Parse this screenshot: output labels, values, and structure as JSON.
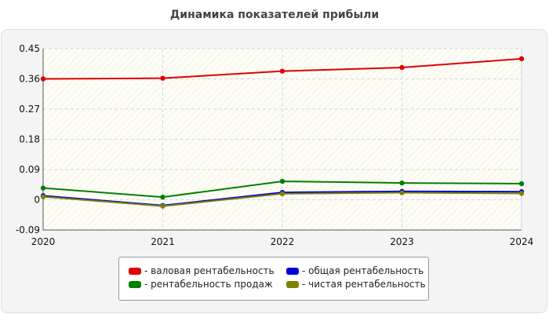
{
  "chart_data": {
    "type": "line",
    "title": "Динамика показателей прибыли",
    "xlabel": "",
    "ylabel": "",
    "categories": [
      "2020",
      "2021",
      "2022",
      "2023",
      "2024"
    ],
    "ylim": [
      -0.09,
      0.45
    ],
    "yticks": [
      -0.09,
      0,
      0.09,
      0.18,
      0.27,
      0.36,
      0.45
    ],
    "ytick_labels": [
      "-0.09",
      "0",
      "0.09",
      "0.18",
      "0.27",
      "0.36",
      "0.45"
    ],
    "grid": true,
    "legend_position": "bottom",
    "series": [
      {
        "name": "- валовая рентабельность",
        "color": "#e00000",
        "values": [
          0.36,
          0.362,
          0.383,
          0.394,
          0.42
        ]
      },
      {
        "name": "- общая рентабельность",
        "color": "#0000e0",
        "values": [
          0.012,
          -0.017,
          0.022,
          0.025,
          0.024
        ]
      },
      {
        "name": "- рентабельность продаж",
        "color": "#008000",
        "values": [
          0.035,
          0.008,
          0.055,
          0.05,
          0.048
        ]
      },
      {
        "name": "- чистая рентабельность",
        "color": "#808000",
        "values": [
          0.009,
          -0.019,
          0.018,
          0.021,
          0.019
        ]
      }
    ]
  }
}
